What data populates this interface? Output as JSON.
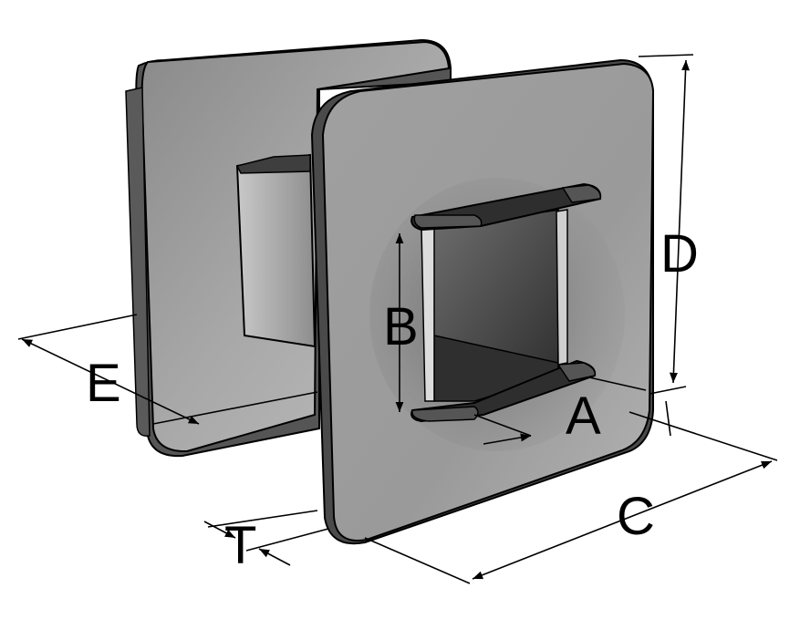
{
  "dimensions": {
    "A": "A",
    "B": "B",
    "C": "C",
    "D": "D",
    "E": "E",
    "T": "T"
  },
  "colors": {
    "plate_face": "#9c9c9c",
    "plate_edge": "#4a4a4a",
    "inner_dark": "#3a3a3a",
    "outline": "#000000",
    "background": "#ffffff"
  }
}
